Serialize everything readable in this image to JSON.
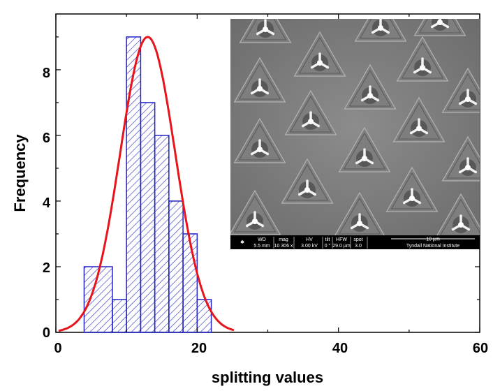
{
  "chart_data": {
    "type": "bar",
    "xlabel": "splitting values",
    "ylabel": "Frequency",
    "xlim": [
      0,
      60
    ],
    "ylim": [
      0,
      9.7
    ],
    "x_ticks": [
      "0",
      "20",
      "40",
      "60"
    ],
    "y_ticks": [
      "0",
      "2",
      "4",
      "6",
      "8"
    ],
    "bins": [
      {
        "x0": 4,
        "x1": 8,
        "count": 2
      },
      {
        "x0": 8,
        "x1": 10,
        "count": 1
      },
      {
        "x0": 10,
        "x1": 12,
        "count": 9
      },
      {
        "x0": 12,
        "x1": 14,
        "count": 7
      },
      {
        "x0": 14,
        "x1": 16,
        "count": 6
      },
      {
        "x0": 16,
        "x1": 18,
        "count": 4
      },
      {
        "x0": 18,
        "x1": 20,
        "count": 3
      },
      {
        "x0": 20,
        "x1": 22,
        "count": 1
      }
    ],
    "fit": {
      "type": "gaussian",
      "center": 13,
      "peak": 9,
      "sigma": 3.9,
      "color": "#e8141b"
    },
    "bar_color": "#2323c8"
  },
  "inset": {
    "info_bar": {
      "headers": [
        "WD",
        "mag",
        "HV",
        "tilt",
        "HFW",
        "spot"
      ],
      "values": [
        "5.5 mm",
        "10 306 x",
        "3.00 kV",
        "0 °",
        "29.0 µm",
        "3.0"
      ],
      "scale_label": "10 µm",
      "institution": "Tyndall National Institute"
    }
  }
}
